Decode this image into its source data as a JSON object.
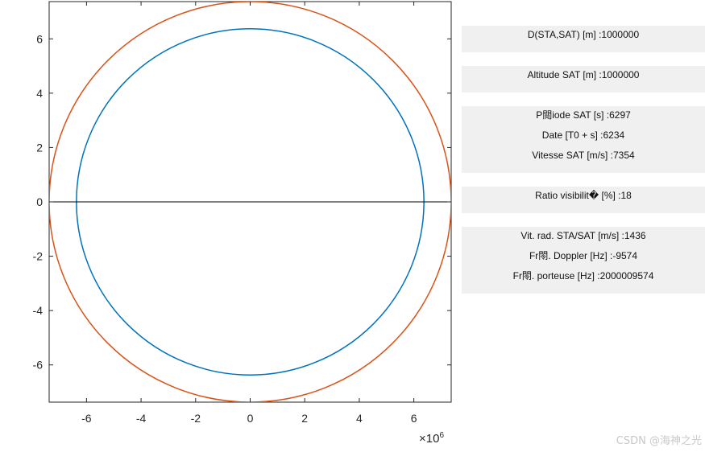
{
  "chart_data": {
    "type": "line",
    "title": "",
    "xlabel": "",
    "ylabel": "",
    "x_exponent_label": "×10",
    "x_exponent_power": "6",
    "xlim": [
      -7.37,
      7.37
    ],
    "ylim": [
      -7.37,
      7.37
    ],
    "grid": false,
    "x_ticks": [
      -6,
      -4,
      -2,
      0,
      2,
      4,
      6
    ],
    "y_ticks": [
      6,
      4,
      2,
      0,
      -2,
      -4,
      -6
    ],
    "x_tick_labels": [
      "-6",
      "-4",
      "-2",
      "0",
      "2",
      "4",
      "6"
    ],
    "y_tick_labels": [
      "6",
      "4",
      "2",
      "0",
      "-2",
      "-4",
      "-6"
    ],
    "series": [
      {
        "shape": "circle",
        "center": [
          0,
          0
        ],
        "radius": 6.37,
        "color": "#0072BD"
      },
      {
        "shape": "circle",
        "center": [
          0,
          0
        ],
        "radius": 7.37,
        "color": "#D95319"
      },
      {
        "shape": "line",
        "x": [
          -7.37,
          7.37
        ],
        "y": [
          0,
          0
        ],
        "color": "#000000"
      }
    ]
  },
  "info": {
    "distance": "D(STA,SAT) [m] :1000000",
    "altitude": "Altitude SAT [m] :1000000",
    "periode": "P閲iode SAT [s] :6297",
    "date": "Date [T0 + s] :6234",
    "vitesse": "Vitesse SAT [m/s] :7354",
    "ratio": "Ratio visibilit� [%] :18",
    "vit_rad": "Vit. rad. STA/SAT [m/s] :1436",
    "doppler": "Fr閝. Doppler [Hz] :-9574",
    "porteuse": "Fr閝. porteuse [Hz] :2000009574"
  },
  "watermark": "CSDN @海神之光"
}
